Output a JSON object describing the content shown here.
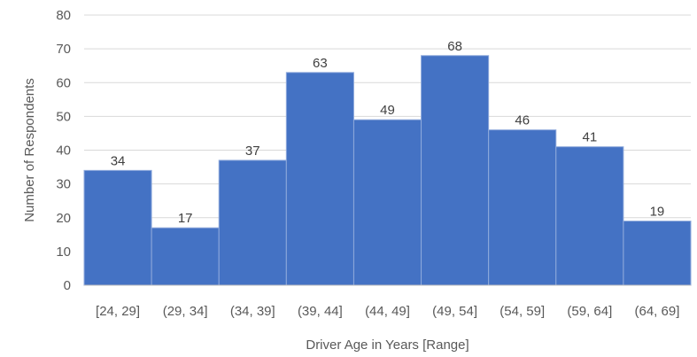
{
  "chart_data": {
    "type": "bar",
    "categories": [
      "[24, 29]",
      "(29, 34]",
      "(34, 39]",
      "(39, 44]",
      "(44, 49]",
      "(49, 54]",
      "(54, 59]",
      "(59, 64]",
      "(64, 69]"
    ],
    "values": [
      34,
      17,
      37,
      63,
      49,
      68,
      46,
      41,
      19
    ],
    "title": "",
    "xlabel": "Driver Age in Years [Range]",
    "ylabel": "Number of Respondents",
    "ylim": [
      0,
      80
    ],
    "yticks": [
      "0",
      "10",
      "20",
      "30",
      "40",
      "50",
      "60",
      "70",
      "80"
    ],
    "grid": true,
    "legend": "none",
    "bar_color": "#4472c4",
    "data_labels": true
  }
}
